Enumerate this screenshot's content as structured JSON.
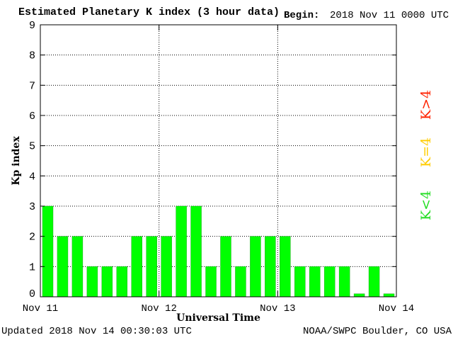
{
  "header": {
    "title": "Estimated Planetary K index (3 hour data)",
    "begin_label": "Begin:",
    "begin_value": "2018 Nov 11 0000 UTC"
  },
  "footer": {
    "updated": "Updated 2018 Nov 14 00:30:03 UTC",
    "credit": "NOAA/SWPC Boulder, CO USA"
  },
  "legend": {
    "high": {
      "text": "K>4",
      "color": "#ff2200"
    },
    "mid": {
      "text": "K=4",
      "color": "#ffcc00"
    },
    "low": {
      "text": "K<4",
      "color": "#22dd22"
    }
  },
  "colors": {
    "bar": "#00ff00",
    "bar_stroke": "#22aa22"
  },
  "chart_data": {
    "type": "bar",
    "title": "Estimated Planetary K index (3 hour data)",
    "xlabel": "Universal Time",
    "ylabel": "Kp index",
    "ylim": [
      0,
      9
    ],
    "yticks": [
      0,
      1,
      2,
      3,
      4,
      5,
      6,
      7,
      8,
      9
    ],
    "xticks": [
      "Nov 11",
      "Nov 12",
      "Nov 13",
      "Nov 14"
    ],
    "grid": true,
    "values": [
      3,
      2,
      2,
      1,
      1,
      1,
      2,
      2,
      2,
      3,
      3,
      1,
      2,
      1,
      2,
      2,
      2,
      1,
      1,
      1,
      1,
      0.1,
      1,
      0.1
    ]
  }
}
